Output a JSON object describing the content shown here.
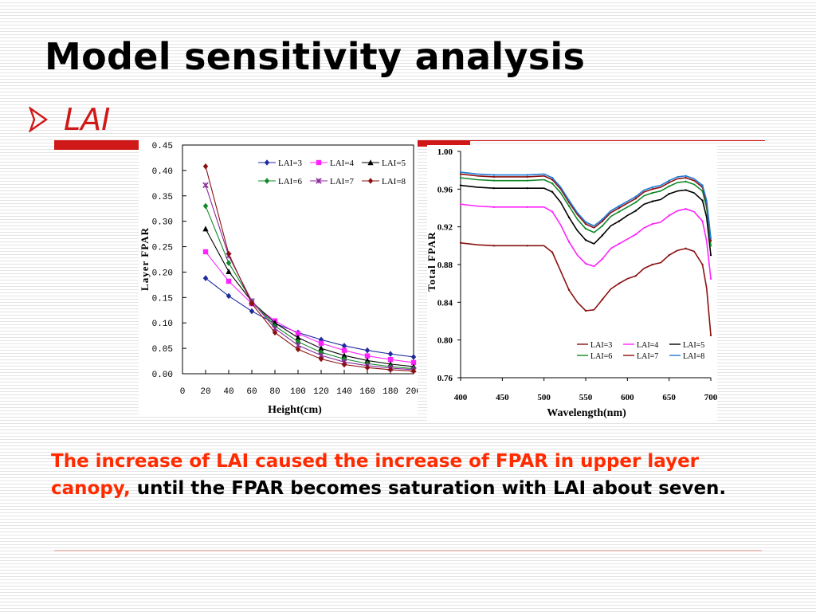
{
  "slide": {
    "title": "Model sensitivity analysis",
    "bullet": "LAI",
    "caption_red": "The increase of LAI caused the increase of FPAR in upper layer canopy,",
    "caption_black": " until the FPAR becomes saturation with LAI about seven."
  },
  "colors": {
    "accent": "#d01818",
    "caption_highlight": "#ff2a00",
    "text": "#000000"
  },
  "chart_data": [
    {
      "type": "line",
      "xlabel": "Height(cm)",
      "ylabel": "Layer FPAR",
      "xlim": [
        0,
        200
      ],
      "ylim": [
        0,
        0.45
      ],
      "xticks": [
        "0",
        "20",
        "40",
        "60",
        "80",
        "100",
        "120",
        "140",
        "160",
        "180",
        "200"
      ],
      "yticks": [
        "0.00",
        "0.05",
        "0.10",
        "0.15",
        "0.20",
        "0.25",
        "0.30",
        "0.35",
        "0.40",
        "0.45"
      ],
      "legend_position": "top-right",
      "grid": false,
      "x": [
        20,
        40,
        60,
        80,
        100,
        120,
        140,
        160,
        180,
        200
      ],
      "series": [
        {
          "name": "LAI=3",
          "color": "#1f2a9e",
          "marker": "diamond",
          "values": [
            0.188,
            0.153,
            0.123,
            0.099,
            0.081,
            0.067,
            0.055,
            0.046,
            0.039,
            0.033
          ]
        },
        {
          "name": "LAI=4",
          "color": "#ff22ff",
          "marker": "square",
          "values": [
            0.24,
            0.182,
            0.138,
            0.104,
            0.079,
            0.06,
            0.046,
            0.035,
            0.028,
            0.022
          ]
        },
        {
          "name": "LAI=5",
          "color": "#000000",
          "marker": "triangle",
          "values": [
            0.285,
            0.201,
            0.142,
            0.1,
            0.071,
            0.05,
            0.036,
            0.026,
            0.019,
            0.014
          ]
        },
        {
          "name": "LAI=6",
          "color": "#11882b",
          "marker": "diamond",
          "values": [
            0.33,
            0.218,
            0.143,
            0.094,
            0.063,
            0.042,
            0.029,
            0.02,
            0.014,
            0.01
          ]
        },
        {
          "name": "LAI=7",
          "color": "#8a2a9a",
          "marker": "x",
          "values": [
            0.371,
            0.232,
            0.143,
            0.089,
            0.056,
            0.036,
            0.023,
            0.016,
            0.011,
            0.008
          ]
        },
        {
          "name": "LAI=8",
          "color": "#8a1010",
          "marker": "diamond",
          "values": [
            0.408,
            0.236,
            0.138,
            0.081,
            0.048,
            0.029,
            0.018,
            0.012,
            0.008,
            0.005
          ]
        }
      ]
    },
    {
      "type": "line",
      "xlabel": "Wavelength(nm)",
      "ylabel": "Total FPAR",
      "xlim": [
        400,
        700
      ],
      "ylim": [
        0.76,
        1.0
      ],
      "xticks": [
        "400",
        "450",
        "500",
        "550",
        "600",
        "650",
        "700"
      ],
      "yticks": [
        "0.76",
        "0.80",
        "0.84",
        "0.88",
        "0.92",
        "0.96",
        "1.00"
      ],
      "legend_position": "bottom-right",
      "grid": false,
      "x": [
        400,
        420,
        440,
        460,
        480,
        500,
        510,
        520,
        530,
        540,
        550,
        560,
        570,
        580,
        590,
        600,
        610,
        620,
        630,
        640,
        650,
        660,
        670,
        680,
        690,
        695,
        700
      ],
      "series": [
        {
          "name": "LAI=3",
          "color": "#8a1010",
          "values": [
            0.903,
            0.901,
            0.9,
            0.9,
            0.9,
            0.9,
            0.893,
            0.873,
            0.853,
            0.84,
            0.831,
            0.832,
            0.843,
            0.854,
            0.86,
            0.865,
            0.868,
            0.876,
            0.88,
            0.882,
            0.89,
            0.895,
            0.897,
            0.894,
            0.88,
            0.855,
            0.805
          ]
        },
        {
          "name": "LAI=4",
          "color": "#ff22ff",
          "values": [
            0.944,
            0.942,
            0.941,
            0.941,
            0.941,
            0.941,
            0.936,
            0.922,
            0.904,
            0.89,
            0.881,
            0.878,
            0.886,
            0.897,
            0.902,
            0.907,
            0.912,
            0.919,
            0.923,
            0.925,
            0.932,
            0.937,
            0.939,
            0.936,
            0.926,
            0.905,
            0.865
          ]
        },
        {
          "name": "LAI=5",
          "color": "#000000",
          "values": [
            0.964,
            0.962,
            0.961,
            0.961,
            0.961,
            0.961,
            0.957,
            0.946,
            0.93,
            0.916,
            0.906,
            0.902,
            0.911,
            0.921,
            0.926,
            0.932,
            0.937,
            0.944,
            0.947,
            0.949,
            0.955,
            0.958,
            0.959,
            0.956,
            0.948,
            0.93,
            0.89
          ]
        },
        {
          "name": "LAI=6",
          "color": "#11882b",
          "values": [
            0.972,
            0.97,
            0.969,
            0.969,
            0.969,
            0.97,
            0.966,
            0.956,
            0.942,
            0.928,
            0.918,
            0.914,
            0.921,
            0.931,
            0.936,
            0.941,
            0.946,
            0.953,
            0.956,
            0.958,
            0.963,
            0.967,
            0.968,
            0.965,
            0.958,
            0.94,
            0.9
          ]
        },
        {
          "name": "LAI=7",
          "color": "#8a1010",
          "values": [
            0.976,
            0.974,
            0.973,
            0.973,
            0.973,
            0.974,
            0.97,
            0.96,
            0.946,
            0.933,
            0.923,
            0.919,
            0.926,
            0.935,
            0.94,
            0.945,
            0.95,
            0.957,
            0.96,
            0.962,
            0.967,
            0.971,
            0.972,
            0.969,
            0.962,
            0.945,
            0.905
          ]
        },
        {
          "name": "LAI=8",
          "color": "#1f7ad8",
          "values": [
            0.978,
            0.976,
            0.975,
            0.975,
            0.975,
            0.976,
            0.972,
            0.962,
            0.948,
            0.935,
            0.925,
            0.921,
            0.928,
            0.937,
            0.942,
            0.947,
            0.952,
            0.959,
            0.962,
            0.964,
            0.969,
            0.973,
            0.974,
            0.971,
            0.964,
            0.948,
            0.908
          ]
        }
      ]
    }
  ]
}
